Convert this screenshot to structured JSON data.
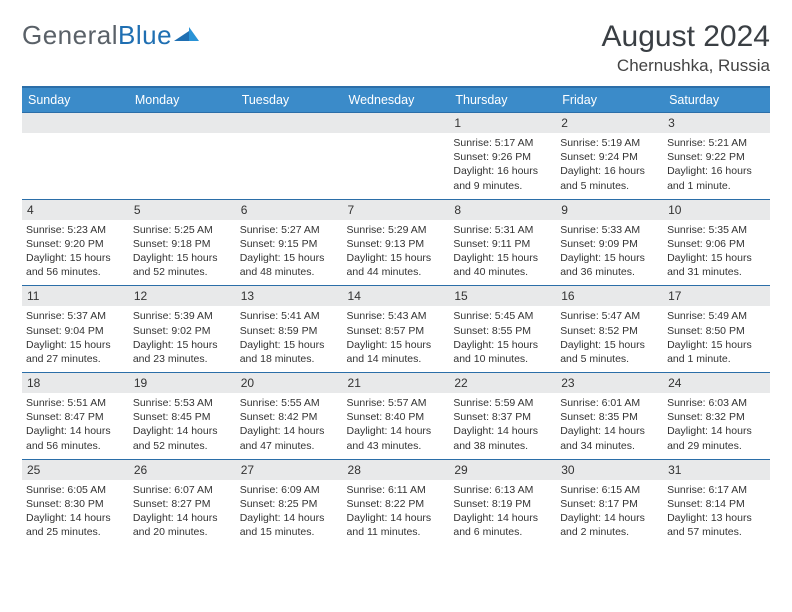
{
  "logo": {
    "general": "General",
    "blue": "Blue"
  },
  "title": "August 2024",
  "location": "Chernushka, Russia",
  "weekdays": [
    "Sunday",
    "Monday",
    "Tuesday",
    "Wednesday",
    "Thursday",
    "Friday",
    "Saturday"
  ],
  "colors": {
    "header_bg": "#3b8bc9",
    "header_border": "#2b6ea8",
    "daynum_bg": "#e8e9ea",
    "text": "#333333",
    "background": "#ffffff"
  },
  "weeks": [
    [
      {
        "day": "",
        "lines": []
      },
      {
        "day": "",
        "lines": []
      },
      {
        "day": "",
        "lines": []
      },
      {
        "day": "",
        "lines": []
      },
      {
        "day": "1",
        "lines": [
          "Sunrise: 5:17 AM",
          "Sunset: 9:26 PM",
          "Daylight: 16 hours and 9 minutes."
        ]
      },
      {
        "day": "2",
        "lines": [
          "Sunrise: 5:19 AM",
          "Sunset: 9:24 PM",
          "Daylight: 16 hours and 5 minutes."
        ]
      },
      {
        "day": "3",
        "lines": [
          "Sunrise: 5:21 AM",
          "Sunset: 9:22 PM",
          "Daylight: 16 hours and 1 minute."
        ]
      }
    ],
    [
      {
        "day": "4",
        "lines": [
          "Sunrise: 5:23 AM",
          "Sunset: 9:20 PM",
          "Daylight: 15 hours and 56 minutes."
        ]
      },
      {
        "day": "5",
        "lines": [
          "Sunrise: 5:25 AM",
          "Sunset: 9:18 PM",
          "Daylight: 15 hours and 52 minutes."
        ]
      },
      {
        "day": "6",
        "lines": [
          "Sunrise: 5:27 AM",
          "Sunset: 9:15 PM",
          "Daylight: 15 hours and 48 minutes."
        ]
      },
      {
        "day": "7",
        "lines": [
          "Sunrise: 5:29 AM",
          "Sunset: 9:13 PM",
          "Daylight: 15 hours and 44 minutes."
        ]
      },
      {
        "day": "8",
        "lines": [
          "Sunrise: 5:31 AM",
          "Sunset: 9:11 PM",
          "Daylight: 15 hours and 40 minutes."
        ]
      },
      {
        "day": "9",
        "lines": [
          "Sunrise: 5:33 AM",
          "Sunset: 9:09 PM",
          "Daylight: 15 hours and 36 minutes."
        ]
      },
      {
        "day": "10",
        "lines": [
          "Sunrise: 5:35 AM",
          "Sunset: 9:06 PM",
          "Daylight: 15 hours and 31 minutes."
        ]
      }
    ],
    [
      {
        "day": "11",
        "lines": [
          "Sunrise: 5:37 AM",
          "Sunset: 9:04 PM",
          "Daylight: 15 hours and 27 minutes."
        ]
      },
      {
        "day": "12",
        "lines": [
          "Sunrise: 5:39 AM",
          "Sunset: 9:02 PM",
          "Daylight: 15 hours and 23 minutes."
        ]
      },
      {
        "day": "13",
        "lines": [
          "Sunrise: 5:41 AM",
          "Sunset: 8:59 PM",
          "Daylight: 15 hours and 18 minutes."
        ]
      },
      {
        "day": "14",
        "lines": [
          "Sunrise: 5:43 AM",
          "Sunset: 8:57 PM",
          "Daylight: 15 hours and 14 minutes."
        ]
      },
      {
        "day": "15",
        "lines": [
          "Sunrise: 5:45 AM",
          "Sunset: 8:55 PM",
          "Daylight: 15 hours and 10 minutes."
        ]
      },
      {
        "day": "16",
        "lines": [
          "Sunrise: 5:47 AM",
          "Sunset: 8:52 PM",
          "Daylight: 15 hours and 5 minutes."
        ]
      },
      {
        "day": "17",
        "lines": [
          "Sunrise: 5:49 AM",
          "Sunset: 8:50 PM",
          "Daylight: 15 hours and 1 minute."
        ]
      }
    ],
    [
      {
        "day": "18",
        "lines": [
          "Sunrise: 5:51 AM",
          "Sunset: 8:47 PM",
          "Daylight: 14 hours and 56 minutes."
        ]
      },
      {
        "day": "19",
        "lines": [
          "Sunrise: 5:53 AM",
          "Sunset: 8:45 PM",
          "Daylight: 14 hours and 52 minutes."
        ]
      },
      {
        "day": "20",
        "lines": [
          "Sunrise: 5:55 AM",
          "Sunset: 8:42 PM",
          "Daylight: 14 hours and 47 minutes."
        ]
      },
      {
        "day": "21",
        "lines": [
          "Sunrise: 5:57 AM",
          "Sunset: 8:40 PM",
          "Daylight: 14 hours and 43 minutes."
        ]
      },
      {
        "day": "22",
        "lines": [
          "Sunrise: 5:59 AM",
          "Sunset: 8:37 PM",
          "Daylight: 14 hours and 38 minutes."
        ]
      },
      {
        "day": "23",
        "lines": [
          "Sunrise: 6:01 AM",
          "Sunset: 8:35 PM",
          "Daylight: 14 hours and 34 minutes."
        ]
      },
      {
        "day": "24",
        "lines": [
          "Sunrise: 6:03 AM",
          "Sunset: 8:32 PM",
          "Daylight: 14 hours and 29 minutes."
        ]
      }
    ],
    [
      {
        "day": "25",
        "lines": [
          "Sunrise: 6:05 AM",
          "Sunset: 8:30 PM",
          "Daylight: 14 hours and 25 minutes."
        ]
      },
      {
        "day": "26",
        "lines": [
          "Sunrise: 6:07 AM",
          "Sunset: 8:27 PM",
          "Daylight: 14 hours and 20 minutes."
        ]
      },
      {
        "day": "27",
        "lines": [
          "Sunrise: 6:09 AM",
          "Sunset: 8:25 PM",
          "Daylight: 14 hours and 15 minutes."
        ]
      },
      {
        "day": "28",
        "lines": [
          "Sunrise: 6:11 AM",
          "Sunset: 8:22 PM",
          "Daylight: 14 hours and 11 minutes."
        ]
      },
      {
        "day": "29",
        "lines": [
          "Sunrise: 6:13 AM",
          "Sunset: 8:19 PM",
          "Daylight: 14 hours and 6 minutes."
        ]
      },
      {
        "day": "30",
        "lines": [
          "Sunrise: 6:15 AM",
          "Sunset: 8:17 PM",
          "Daylight: 14 hours and 2 minutes."
        ]
      },
      {
        "day": "31",
        "lines": [
          "Sunrise: 6:17 AM",
          "Sunset: 8:14 PM",
          "Daylight: 13 hours and 57 minutes."
        ]
      }
    ]
  ]
}
